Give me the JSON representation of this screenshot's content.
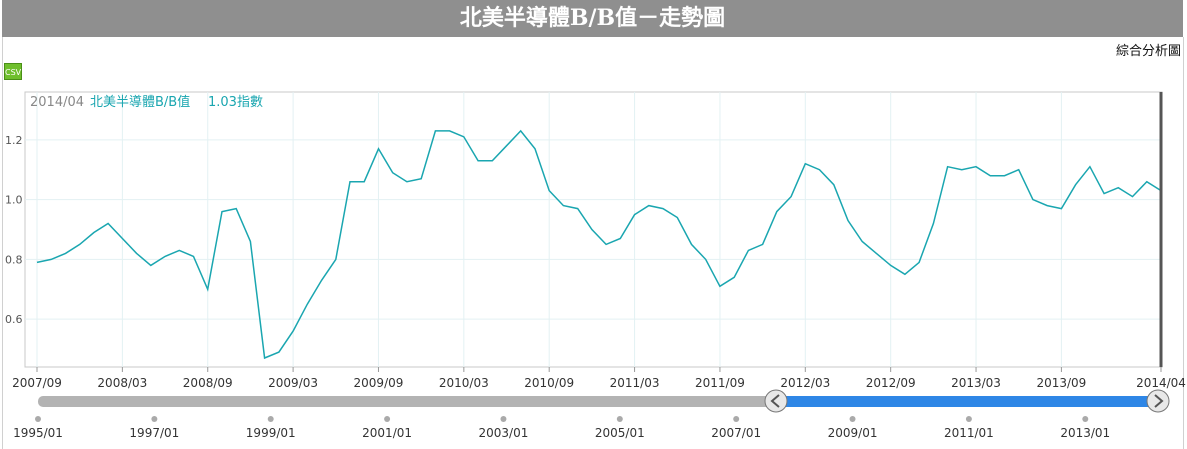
{
  "page_title": "北美半導體B/B值－走勢圖",
  "analysis_link": "綜合分析圖",
  "csv_label": "CSV",
  "chart_data": {
    "type": "line",
    "title": "北美半導體B/B值－走勢圖",
    "tooltip": {
      "date": "2014/04",
      "series": "北美半導體B/B值",
      "value": "1.03指數"
    },
    "series": [
      {
        "name": "北美半導體B/B值",
        "color": "#1aa6b0",
        "x": [
          "2007/09",
          "2007/10",
          "2007/11",
          "2007/12",
          "2008/01",
          "2008/02",
          "2008/03",
          "2008/04",
          "2008/05",
          "2008/06",
          "2008/07",
          "2008/08",
          "2008/09",
          "2008/10",
          "2008/11",
          "2008/12",
          "2009/01",
          "2009/02",
          "2009/03",
          "2009/04",
          "2009/05",
          "2009/06",
          "2009/07",
          "2009/08",
          "2009/09",
          "2009/10",
          "2009/11",
          "2009/12",
          "2010/01",
          "2010/02",
          "2010/03",
          "2010/04",
          "2010/05",
          "2010/06",
          "2010/07",
          "2010/08",
          "2010/09",
          "2010/10",
          "2010/11",
          "2010/12",
          "2011/01",
          "2011/02",
          "2011/03",
          "2011/04",
          "2011/05",
          "2011/06",
          "2011/07",
          "2011/08",
          "2011/09",
          "2011/10",
          "2011/11",
          "2011/12",
          "2012/01",
          "2012/02",
          "2012/03",
          "2012/04",
          "2012/05",
          "2012/06",
          "2012/07",
          "2012/08",
          "2012/09",
          "2012/10",
          "2012/11",
          "2012/12",
          "2013/01",
          "2013/02",
          "2013/03",
          "2013/04",
          "2013/05",
          "2013/06",
          "2013/07",
          "2013/08",
          "2013/09",
          "2013/10",
          "2013/11",
          "2013/12",
          "2014/01",
          "2014/02",
          "2014/03",
          "2014/04"
        ],
        "values": [
          0.79,
          0.8,
          0.82,
          0.85,
          0.89,
          0.92,
          0.87,
          0.82,
          0.78,
          0.81,
          0.83,
          0.81,
          0.7,
          0.96,
          0.97,
          0.86,
          0.47,
          0.49,
          0.56,
          0.65,
          0.73,
          0.8,
          1.06,
          1.06,
          1.17,
          1.09,
          1.06,
          1.07,
          1.23,
          1.23,
          1.21,
          1.13,
          1.13,
          1.18,
          1.23,
          1.17,
          1.03,
          0.98,
          0.97,
          0.9,
          0.85,
          0.87,
          0.95,
          0.98,
          0.97,
          0.94,
          0.85,
          0.8,
          0.71,
          0.74,
          0.83,
          0.85,
          0.96,
          1.01,
          1.12,
          1.1,
          1.05,
          0.93,
          0.86,
          0.82,
          0.78,
          0.75,
          0.79,
          0.92,
          1.11,
          1.1,
          1.11,
          1.08,
          1.08,
          1.1,
          1.0,
          0.98,
          0.97,
          1.05,
          1.11,
          1.02,
          1.04,
          1.01,
          1.06,
          1.03
        ]
      }
    ],
    "x_tick_labels": [
      "2007/09",
      "2008/03",
      "2008/09",
      "2009/03",
      "2009/09",
      "2010/03",
      "2010/09",
      "2011/03",
      "2011/09",
      "2012/03",
      "2012/09",
      "2013/03",
      "2013/09",
      "2014/04"
    ],
    "y_tick_labels": [
      "0.6",
      "0.8",
      "1.0",
      "1.2"
    ],
    "ylim": [
      0.44,
      1.36
    ],
    "grid": true,
    "navigator": {
      "tick_labels": [
        "1995/01",
        "1997/01",
        "1999/01",
        "2001/01",
        "2003/01",
        "2005/01",
        "2007/01",
        "2009/01",
        "2011/01",
        "2013/01"
      ],
      "range": [
        "1995/01",
        "2014/04"
      ],
      "selected": [
        "2007/09",
        "2014/04"
      ],
      "track_color": "#b3b3b3",
      "selected_color": "#2e86e6"
    }
  }
}
